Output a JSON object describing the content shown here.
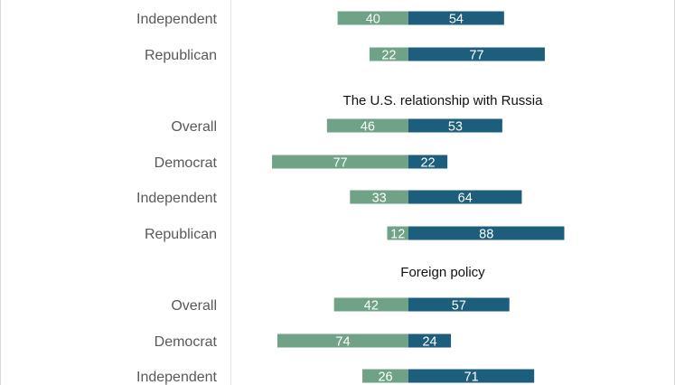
{
  "chart_data": {
    "type": "bar",
    "orientation": "horizontal-diverging",
    "colors": {
      "left": "#6fa287",
      "right": "#1d5e7c"
    },
    "sections": [
      {
        "title": "",
        "rows": [
          {
            "label": "Independent",
            "left": 40,
            "right": 54
          },
          {
            "label": "Republican",
            "left": 22,
            "right": 77
          }
        ]
      },
      {
        "title": "The U.S. relationship with Russia",
        "rows": [
          {
            "label": "Overall",
            "left": 46,
            "right": 53
          },
          {
            "label": "Democrat",
            "left": 77,
            "right": 22
          },
          {
            "label": "Independent",
            "left": 33,
            "right": 64
          },
          {
            "label": "Republican",
            "left": 12,
            "right": 88
          }
        ]
      },
      {
        "title": "Foreign policy",
        "rows": [
          {
            "label": "Overall",
            "left": 42,
            "right": 57
          },
          {
            "label": "Democrat",
            "left": 74,
            "right": 24
          },
          {
            "label": "Independent",
            "left": 26,
            "right": 71
          }
        ]
      }
    ]
  }
}
